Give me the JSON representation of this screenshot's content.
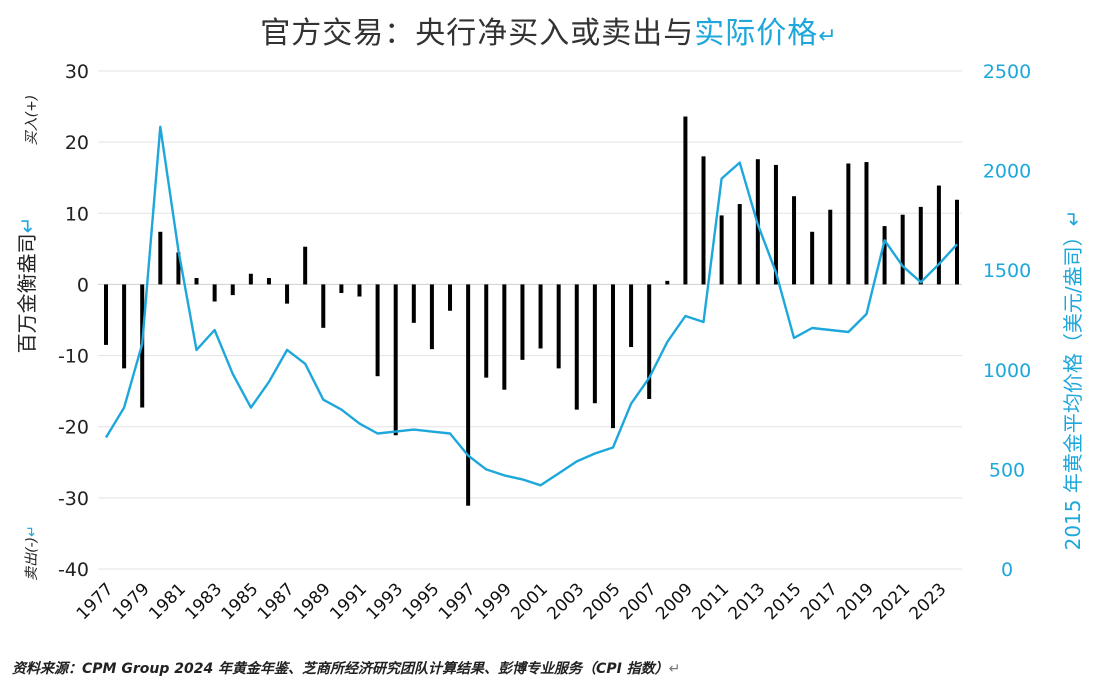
{
  "title": {
    "main": "官方交易：央行净买入或卖出与",
    "accent": "实际价格",
    "mark": "↵"
  },
  "source": {
    "text": "资料来源：CPM Group 2024 年黄金年鉴、芝商所经济研究团队计算结果、彭博专业服务（CPI 指数）",
    "mark": "↵"
  },
  "colors": {
    "bar": "#000000",
    "line": "#1ea7db",
    "grid": "#e3e3e3",
    "axis_right": "#1ea7db"
  },
  "chart_data": {
    "type": "bar",
    "title": "官方交易：央行净买入或卖出与实际价格",
    "grid": true,
    "x_ticks": [
      "1977",
      "1979",
      "1981",
      "1983",
      "1985",
      "1987",
      "1989",
      "1991",
      "1993",
      "1995",
      "1997",
      "1999",
      "2001",
      "2003",
      "2005",
      "2007",
      "2009",
      "2011",
      "2013",
      "2015",
      "2017",
      "2019",
      "2021",
      "2023"
    ],
    "y_left": {
      "label": "百万金衡盎司",
      "ticks": [
        30,
        20,
        10,
        0,
        -10,
        -20,
        -30,
        -40
      ],
      "ylim": [
        -40,
        30
      ],
      "top_note": "买入(+)",
      "bottom_note": "卖出(-)",
      "mark": "↵"
    },
    "y_right": {
      "label": "2015 年黄金平均价格（美元/盎司）",
      "ticks": [
        2500,
        2000,
        1500,
        1000,
        500,
        0
      ],
      "ylim": [
        0,
        2500
      ],
      "mark": "↵"
    },
    "categories": [
      1977,
      1978,
      1979,
      1980,
      1981,
      1982,
      1983,
      1984,
      1985,
      1986,
      1987,
      1988,
      1989,
      1990,
      1991,
      1992,
      1993,
      1994,
      1995,
      1996,
      1997,
      1998,
      1999,
      2000,
      2001,
      2002,
      2003,
      2004,
      2005,
      2006,
      2007,
      2008,
      2009,
      2010,
      2011,
      2012,
      2013,
      2014,
      2015,
      2016,
      2017,
      2018,
      2019,
      2020,
      2021,
      2022,
      2023,
      2024
    ],
    "series": [
      {
        "type": "bar",
        "axis": "left",
        "values": [
          -8.5,
          -11.8,
          -17.3,
          7.4,
          4.5,
          0.9,
          -2.4,
          -1.5,
          1.5,
          0.9,
          -2.7,
          5.3,
          -6.1,
          -1.2,
          -1.7,
          -12.9,
          -21.2,
          -5.4,
          -9.1,
          -3.7,
          -31.1,
          -13.1,
          -14.8,
          -10.6,
          -9.0,
          -11.8,
          -17.6,
          -16.7,
          -20.2,
          -8.8,
          -16.1,
          0.5,
          23.6,
          18.0,
          9.7,
          11.3,
          17.6,
          16.8,
          12.4,
          7.4,
          10.5,
          17.0,
          17.2,
          8.2,
          9.8,
          10.9,
          13.9,
          11.9
        ]
      },
      {
        "type": "line",
        "axis": "right",
        "values": [
          660,
          810,
          1130,
          2220,
          1600,
          1100,
          1200,
          980,
          810,
          940,
          1100,
          1030,
          850,
          800,
          730,
          680,
          690,
          700,
          690,
          680,
          570,
          500,
          470,
          450,
          420,
          480,
          540,
          580,
          610,
          830,
          960,
          1140,
          1270,
          1240,
          1960,
          2040,
          1730,
          1490,
          1160,
          1210,
          1200,
          1190,
          1280,
          1650,
          1520,
          1440,
          1530,
          1630
        ]
      }
    ]
  }
}
